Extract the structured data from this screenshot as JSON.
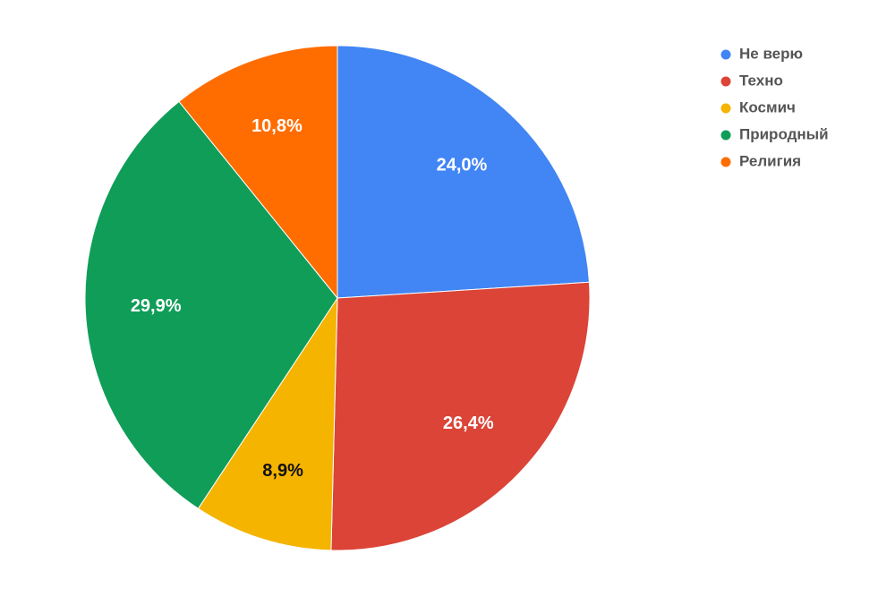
{
  "chart_data": {
    "type": "pie",
    "categories": [
      "Не верю",
      "Техно",
      "Космич",
      "Природный",
      "Религия"
    ],
    "values": [
      24.0,
      26.4,
      8.9,
      29.9,
      10.8
    ],
    "value_labels": [
      "24,0%",
      "26,4%",
      "8,9%",
      "29,9%",
      "10,8%"
    ],
    "colors": [
      "#4285f4",
      "#db4437",
      "#f4b400",
      "#0f9d58",
      "#ff6d00"
    ],
    "legend": "top-right"
  }
}
